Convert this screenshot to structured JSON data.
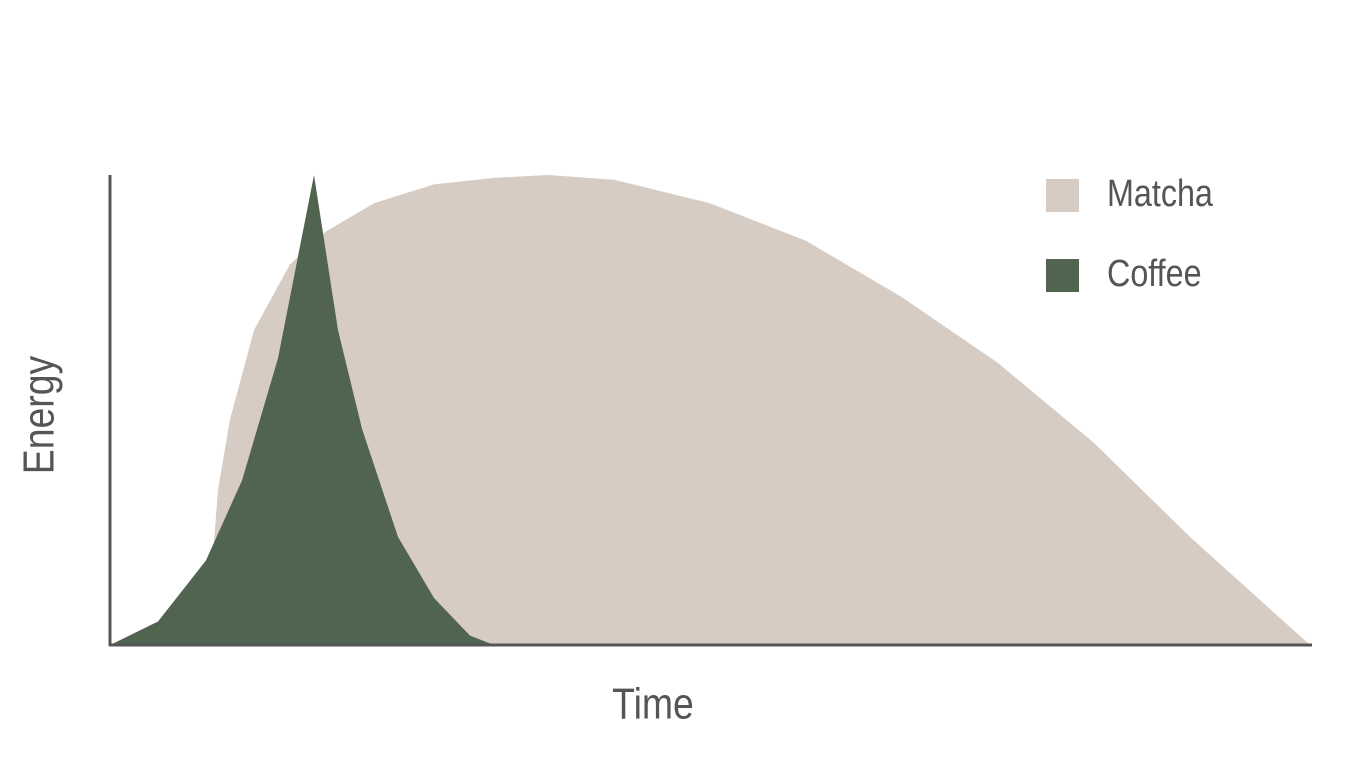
{
  "chart_data": {
    "type": "area",
    "x_label": "Time",
    "y_label": "Energy",
    "xlim": [
      0,
      100
    ],
    "ylim": [
      0,
      100
    ],
    "legend": "top-right",
    "series": [
      {
        "name": "Matcha",
        "color": "#d6ccc3",
        "x": [
          8,
          9,
          10,
          12,
          15,
          18,
          22,
          27,
          32,
          36.5,
          42,
          50,
          58,
          66,
          74,
          82,
          90,
          100
        ],
        "values": [
          0,
          33,
          48,
          67,
          81,
          88,
          94,
          98,
          99.4,
          100,
          99,
          94,
          86,
          74,
          60,
          43,
          23,
          0
        ]
      },
      {
        "name": "Coffee",
        "color": "#506450",
        "x": [
          0,
          4,
          8,
          11,
          14,
          17,
          19,
          21,
          24,
          27,
          30,
          32
        ],
        "values": [
          0,
          5,
          18,
          35,
          61,
          100,
          67,
          46,
          23,
          10,
          2,
          0
        ]
      }
    ]
  }
}
